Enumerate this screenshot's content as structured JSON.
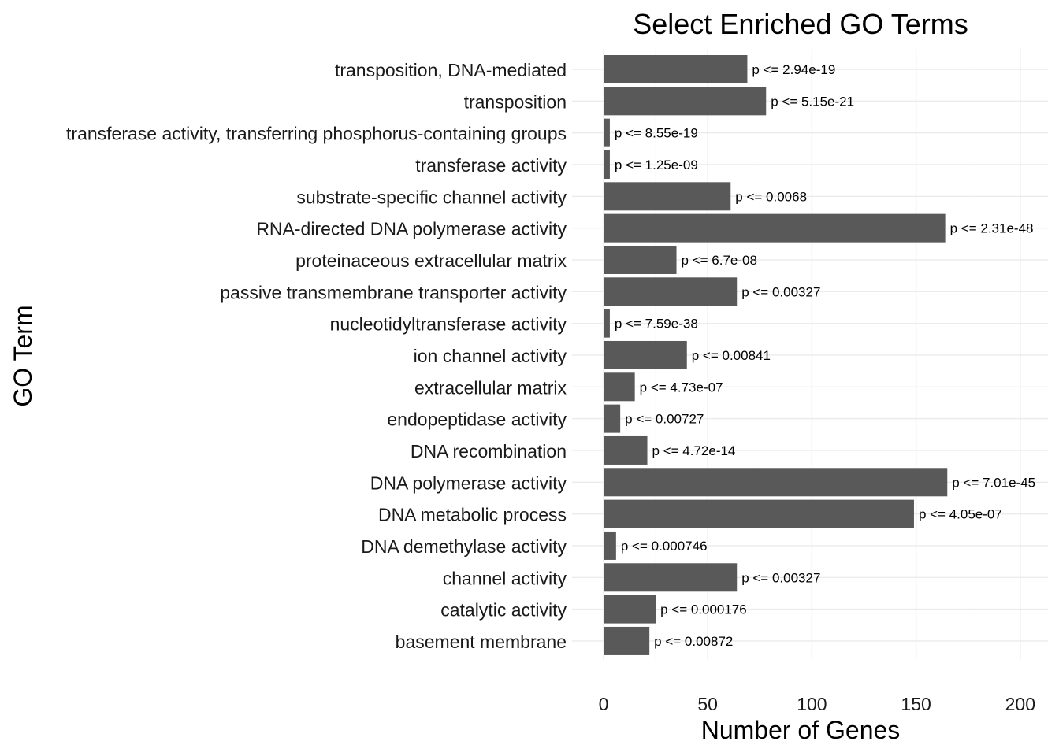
{
  "chart_data": {
    "type": "bar",
    "orientation": "horizontal",
    "title": "Select Enriched GO Terms",
    "xlabel": "Number of Genes",
    "ylabel": "GO Term",
    "xlim": [
      0,
      205
    ],
    "xticks": [
      0,
      50,
      100,
      150,
      200
    ],
    "grid": true,
    "legend": "none",
    "bar_color": "#595959",
    "categories": [
      "transposition, DNA-mediated",
      "transposition",
      "transferase activity, transferring phosphorus-containing groups",
      "transferase activity",
      "substrate-specific channel activity",
      "RNA-directed DNA polymerase activity",
      "proteinaceous extracellular matrix",
      "passive transmembrane transporter activity",
      "nucleotidyltransferase activity",
      "ion channel activity",
      "extracellular matrix",
      "endopeptidase activity",
      "DNA recombination",
      "DNA polymerase activity",
      "DNA metabolic process",
      "DNA demethylase activity",
      "channel activity",
      "catalytic activity",
      "basement membrane"
    ],
    "values": [
      69,
      78,
      3,
      3,
      61,
      164,
      35,
      64,
      3,
      40,
      15,
      8,
      21,
      165,
      149,
      6,
      64,
      25,
      22
    ],
    "annotations": [
      "p <= 2.94e-19",
      "p <= 5.15e-21",
      "p <= 8.55e-19",
      "p <= 1.25e-09",
      "p <= 0.0068",
      "p <= 2.31e-48",
      "p <= 6.7e-08",
      "p <= 0.00327",
      "p <= 7.59e-38",
      "p <= 0.00841",
      "p <= 4.73e-07",
      "p <= 0.00727",
      "p <= 4.72e-14",
      "p <= 7.01e-45",
      "p <= 4.05e-07",
      "p <= 0.000746",
      "p <= 0.00327",
      "p <= 0.000176",
      "p <= 0.00872"
    ]
  }
}
